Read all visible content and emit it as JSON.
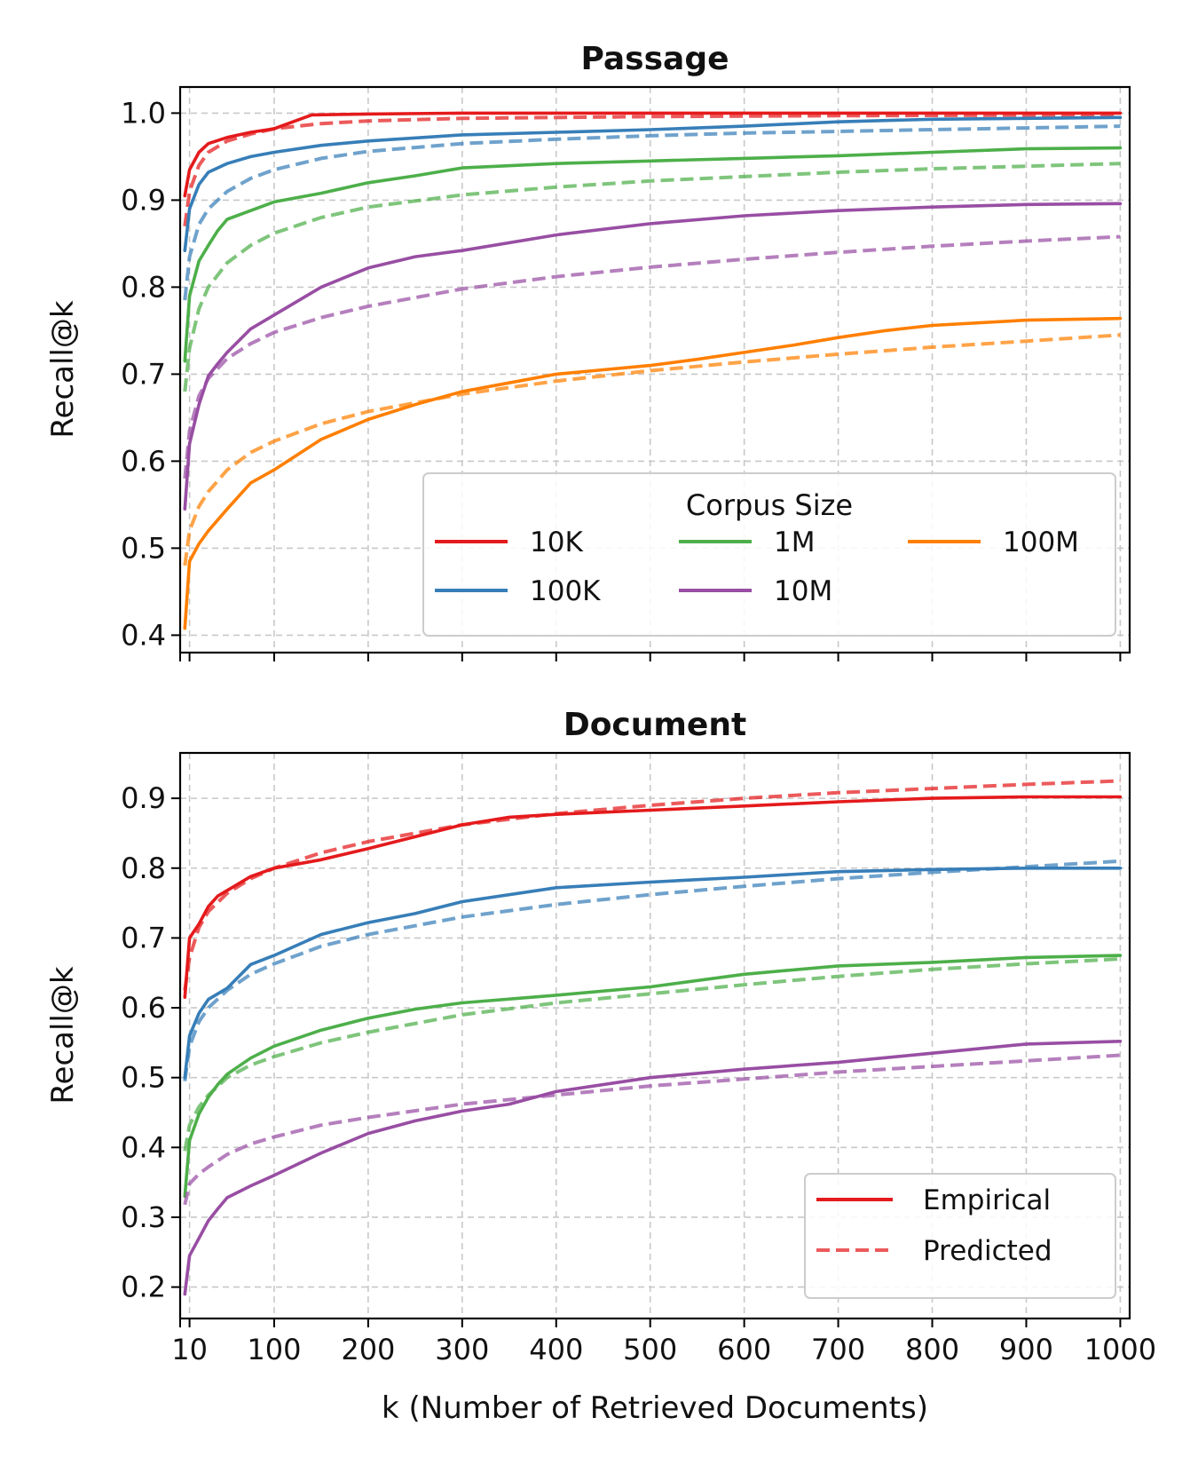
{
  "chart_data": [
    {
      "type": "line",
      "title": "Passage",
      "xlabel": "",
      "ylabel": "Recall@k",
      "xlim": [
        0,
        1010
      ],
      "ylim": [
        0.38,
        1.03
      ],
      "x_ticks": [
        10,
        100,
        200,
        300,
        400,
        500,
        600,
        700,
        800,
        900,
        1000
      ],
      "y_ticks": [
        0.4,
        0.5,
        0.6,
        0.7,
        0.8,
        0.9,
        1.0
      ],
      "y_tick_labels": [
        "0.4",
        "0.5",
        "0.6",
        "0.7",
        "0.8",
        "0.9",
        "1.0"
      ],
      "grid": true,
      "legend": {
        "title": "Corpus Size",
        "placement": "lower-right",
        "columns": 3,
        "entries": [
          "10K",
          "100K",
          "1M",
          "10M",
          "100M"
        ]
      },
      "series": [
        {
          "name": "10K",
          "color": "#e41a1c",
          "style": "solid",
          "x": [
            5,
            10,
            20,
            30,
            50,
            75,
            100,
            120,
            140,
            200,
            300,
            500,
            700,
            1000
          ],
          "y": [
            0.905,
            0.935,
            0.955,
            0.965,
            0.972,
            0.978,
            0.982,
            0.99,
            0.998,
            0.999,
            1.0,
            1.0,
            1.0,
            1.0
          ]
        },
        {
          "name": "10K",
          "color": "#e41a1c",
          "style": "dashed",
          "x": [
            5,
            10,
            20,
            30,
            50,
            75,
            100,
            150,
            200,
            300,
            500,
            700,
            1000
          ],
          "y": [
            0.87,
            0.91,
            0.94,
            0.955,
            0.968,
            0.976,
            0.982,
            0.988,
            0.991,
            0.994,
            0.996,
            0.997,
            0.998
          ]
        },
        {
          "name": "100K",
          "color": "#377eb8",
          "style": "solid",
          "x": [
            5,
            10,
            20,
            30,
            50,
            75,
            100,
            150,
            200,
            300,
            400,
            500,
            600,
            700,
            800,
            1000
          ],
          "y": [
            0.842,
            0.89,
            0.918,
            0.932,
            0.942,
            0.95,
            0.955,
            0.963,
            0.968,
            0.975,
            0.978,
            0.981,
            0.985,
            0.99,
            0.993,
            0.995
          ]
        },
        {
          "name": "100K",
          "color": "#377eb8",
          "style": "dashed",
          "x": [
            5,
            10,
            20,
            30,
            50,
            75,
            100,
            150,
            200,
            300,
            400,
            500,
            600,
            700,
            800,
            900,
            1000
          ],
          "y": [
            0.785,
            0.835,
            0.872,
            0.89,
            0.91,
            0.925,
            0.935,
            0.948,
            0.956,
            0.965,
            0.97,
            0.974,
            0.977,
            0.979,
            0.981,
            0.983,
            0.985
          ]
        },
        {
          "name": "1M",
          "color": "#4daf4a",
          "style": "solid",
          "x": [
            5,
            10,
            20,
            30,
            40,
            50,
            75,
            100,
            150,
            200,
            250,
            300,
            400,
            500,
            600,
            700,
            800,
            900,
            1000
          ],
          "y": [
            0.715,
            0.79,
            0.83,
            0.848,
            0.865,
            0.878,
            0.888,
            0.898,
            0.908,
            0.92,
            0.928,
            0.937,
            0.942,
            0.945,
            0.948,
            0.951,
            0.955,
            0.959,
            0.96
          ]
        },
        {
          "name": "1M",
          "color": "#4daf4a",
          "style": "dashed",
          "x": [
            5,
            10,
            20,
            30,
            50,
            75,
            100,
            150,
            200,
            300,
            400,
            500,
            600,
            700,
            800,
            900,
            1000
          ],
          "y": [
            0.68,
            0.73,
            0.775,
            0.8,
            0.828,
            0.848,
            0.862,
            0.88,
            0.892,
            0.906,
            0.915,
            0.922,
            0.927,
            0.932,
            0.936,
            0.939,
            0.942
          ]
        },
        {
          "name": "10M",
          "color": "#984ea3",
          "style": "solid",
          "x": [
            5,
            10,
            20,
            30,
            40,
            50,
            75,
            100,
            150,
            200,
            250,
            300,
            400,
            500,
            600,
            700,
            800,
            900,
            1000
          ],
          "y": [
            0.545,
            0.62,
            0.665,
            0.698,
            0.712,
            0.725,
            0.752,
            0.768,
            0.8,
            0.822,
            0.835,
            0.842,
            0.86,
            0.873,
            0.882,
            0.888,
            0.892,
            0.895,
            0.896
          ]
        },
        {
          "name": "10M",
          "color": "#984ea3",
          "style": "dashed",
          "x": [
            5,
            10,
            20,
            30,
            50,
            75,
            100,
            150,
            200,
            300,
            400,
            500,
            600,
            700,
            800,
            900,
            1000
          ],
          "y": [
            0.58,
            0.635,
            0.675,
            0.695,
            0.718,
            0.735,
            0.748,
            0.765,
            0.778,
            0.798,
            0.812,
            0.823,
            0.832,
            0.84,
            0.847,
            0.853,
            0.858
          ]
        },
        {
          "name": "100M",
          "color": "#ff7f00",
          "style": "solid",
          "x": [
            5,
            10,
            20,
            30,
            50,
            75,
            100,
            150,
            200,
            250,
            300,
            350,
            400,
            450,
            500,
            550,
            600,
            650,
            700,
            750,
            800,
            900,
            1000
          ],
          "y": [
            0.408,
            0.485,
            0.505,
            0.52,
            0.545,
            0.575,
            0.59,
            0.625,
            0.648,
            0.665,
            0.68,
            0.69,
            0.7,
            0.705,
            0.71,
            0.717,
            0.725,
            0.733,
            0.742,
            0.75,
            0.756,
            0.762,
            0.764
          ]
        },
        {
          "name": "100M",
          "color": "#ff7f00",
          "style": "dashed",
          "x": [
            5,
            10,
            20,
            30,
            50,
            75,
            100,
            150,
            200,
            300,
            400,
            500,
            600,
            700,
            800,
            900,
            1000
          ],
          "y": [
            0.48,
            0.52,
            0.548,
            0.565,
            0.59,
            0.61,
            0.623,
            0.643,
            0.657,
            0.677,
            0.692,
            0.704,
            0.714,
            0.723,
            0.731,
            0.738,
            0.745
          ]
        }
      ]
    },
    {
      "type": "line",
      "title": "Document",
      "xlabel": "k (Number of Retrieved Documents)",
      "ylabel": "Recall@k",
      "xlim": [
        0,
        1010
      ],
      "ylim": [
        0.155,
        0.965
      ],
      "x_ticks": [
        10,
        100,
        200,
        300,
        400,
        500,
        600,
        700,
        800,
        900,
        1000
      ],
      "x_tick_labels": [
        "10",
        "100",
        "200",
        "300",
        "400",
        "500",
        "600",
        "700",
        "800",
        "900",
        "1000"
      ],
      "y_ticks": [
        0.2,
        0.3,
        0.4,
        0.5,
        0.6,
        0.7,
        0.8,
        0.9
      ],
      "y_tick_labels": [
        "0.2",
        "0.3",
        "0.4",
        "0.5",
        "0.6",
        "0.7",
        "0.8",
        "0.9"
      ],
      "grid": true,
      "legend": {
        "placement": "lower-right",
        "entries": [
          "Empirical",
          "Predicted"
        ]
      },
      "series": [
        {
          "name": "Empirical",
          "color": "#e41a1c",
          "style": "solid",
          "x": [
            5,
            10,
            20,
            30,
            40,
            50,
            75,
            100,
            150,
            200,
            250,
            300,
            350,
            400,
            500,
            600,
            700,
            800,
            900,
            1000
          ],
          "y": [
            0.615,
            0.7,
            0.72,
            0.745,
            0.76,
            0.768,
            0.788,
            0.8,
            0.812,
            0.828,
            0.845,
            0.862,
            0.873,
            0.877,
            0.883,
            0.889,
            0.895,
            0.9,
            0.902,
            0.902
          ]
        },
        {
          "name": "Predicted",
          "color": "#e41a1c",
          "style": "dashed",
          "x": [
            5,
            10,
            20,
            30,
            50,
            75,
            100,
            150,
            200,
            300,
            400,
            500,
            600,
            700,
            800,
            900,
            1000
          ],
          "y": [
            0.625,
            0.672,
            0.715,
            0.738,
            0.764,
            0.785,
            0.8,
            0.822,
            0.838,
            0.862,
            0.878,
            0.89,
            0.9,
            0.908,
            0.914,
            0.92,
            0.925
          ]
        },
        {
          "name": "100K",
          "color": "#377eb8",
          "style": "solid",
          "x": [
            5,
            10,
            20,
            30,
            50,
            75,
            100,
            150,
            200,
            250,
            300,
            400,
            500,
            600,
            700,
            800,
            900,
            1000
          ],
          "y": [
            0.5,
            0.56,
            0.592,
            0.612,
            0.628,
            0.662,
            0.675,
            0.705,
            0.722,
            0.735,
            0.752,
            0.772,
            0.78,
            0.787,
            0.795,
            0.798,
            0.8,
            0.8
          ]
        },
        {
          "name": "100K",
          "color": "#377eb8",
          "style": "dashed",
          "x": [
            5,
            10,
            20,
            30,
            50,
            75,
            100,
            150,
            200,
            300,
            400,
            500,
            600,
            700,
            800,
            900,
            1000
          ],
          "y": [
            0.495,
            0.545,
            0.58,
            0.6,
            0.625,
            0.648,
            0.663,
            0.688,
            0.705,
            0.73,
            0.748,
            0.762,
            0.774,
            0.785,
            0.794,
            0.802,
            0.81
          ]
        },
        {
          "name": "1M",
          "color": "#4daf4a",
          "style": "solid",
          "x": [
            5,
            10,
            20,
            30,
            40,
            50,
            75,
            100,
            150,
            200,
            250,
            300,
            400,
            500,
            600,
            700,
            800,
            900,
            1000
          ],
          "y": [
            0.33,
            0.41,
            0.448,
            0.472,
            0.49,
            0.505,
            0.528,
            0.545,
            0.568,
            0.585,
            0.598,
            0.607,
            0.618,
            0.63,
            0.648,
            0.66,
            0.665,
            0.672,
            0.675
          ]
        },
        {
          "name": "1M",
          "color": "#4daf4a",
          "style": "dashed",
          "x": [
            5,
            10,
            20,
            30,
            50,
            75,
            100,
            150,
            200,
            300,
            400,
            500,
            600,
            700,
            800,
            900,
            1000
          ],
          "y": [
            0.395,
            0.432,
            0.458,
            0.475,
            0.5,
            0.518,
            0.53,
            0.55,
            0.565,
            0.59,
            0.607,
            0.62,
            0.633,
            0.645,
            0.655,
            0.663,
            0.67
          ]
        },
        {
          "name": "10M",
          "color": "#984ea3",
          "style": "solid",
          "x": [
            5,
            10,
            20,
            30,
            40,
            50,
            75,
            100,
            150,
            200,
            250,
            300,
            350,
            400,
            500,
            600,
            700,
            800,
            900,
            1000
          ],
          "y": [
            0.19,
            0.245,
            0.27,
            0.295,
            0.312,
            0.328,
            0.345,
            0.36,
            0.392,
            0.42,
            0.438,
            0.452,
            0.462,
            0.48,
            0.5,
            0.512,
            0.522,
            0.535,
            0.548,
            0.552
          ]
        },
        {
          "name": "10M",
          "color": "#984ea3",
          "style": "dashed",
          "x": [
            5,
            10,
            20,
            30,
            50,
            75,
            100,
            150,
            200,
            300,
            400,
            500,
            600,
            700,
            800,
            900,
            1000
          ],
          "y": [
            0.318,
            0.348,
            0.362,
            0.372,
            0.39,
            0.405,
            0.415,
            0.432,
            0.443,
            0.462,
            0.475,
            0.488,
            0.498,
            0.508,
            0.516,
            0.524,
            0.532
          ]
        }
      ]
    }
  ]
}
